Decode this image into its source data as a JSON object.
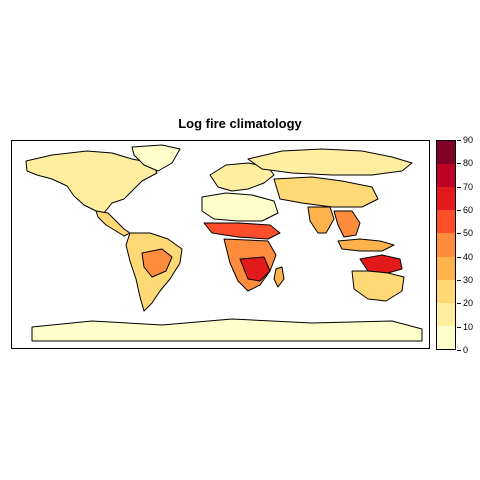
{
  "title": "Log fire climatology",
  "colors": {
    "ocean": "#ffffff",
    "coastline": "#000000",
    "scale": [
      "#ffffcc",
      "#ffeda0",
      "#fed976",
      "#feb24c",
      "#fd8d3c",
      "#fc4e2a",
      "#e31a1c",
      "#bd0026",
      "#800026"
    ]
  },
  "legend": {
    "ticks": [
      "90",
      "80",
      "70",
      "60",
      "50",
      "40",
      "30",
      "20",
      "10",
      "0"
    ]
  },
  "regions": [
    {
      "name": "north-america",
      "level": 1
    },
    {
      "name": "greenland",
      "level": 0
    },
    {
      "name": "central-america",
      "level": 2
    },
    {
      "name": "south-america",
      "level": 2
    },
    {
      "name": "amazon-hotspot",
      "level": 4
    },
    {
      "name": "europe",
      "level": 1
    },
    {
      "name": "sahara",
      "level": 0
    },
    {
      "name": "sahel",
      "level": 5
    },
    {
      "name": "central-africa",
      "level": 4
    },
    {
      "name": "southern-africa-hotspot",
      "level": 6
    },
    {
      "name": "madagascar",
      "level": 3
    },
    {
      "name": "central-asia",
      "level": 2
    },
    {
      "name": "siberia",
      "level": 1
    },
    {
      "name": "india",
      "level": 3
    },
    {
      "name": "southeast-asia",
      "level": 4
    },
    {
      "name": "indonesia",
      "level": 3
    },
    {
      "name": "northern-australia",
      "level": 6
    },
    {
      "name": "inland-australia",
      "level": 2
    },
    {
      "name": "antarctica",
      "level": 0
    }
  ]
}
